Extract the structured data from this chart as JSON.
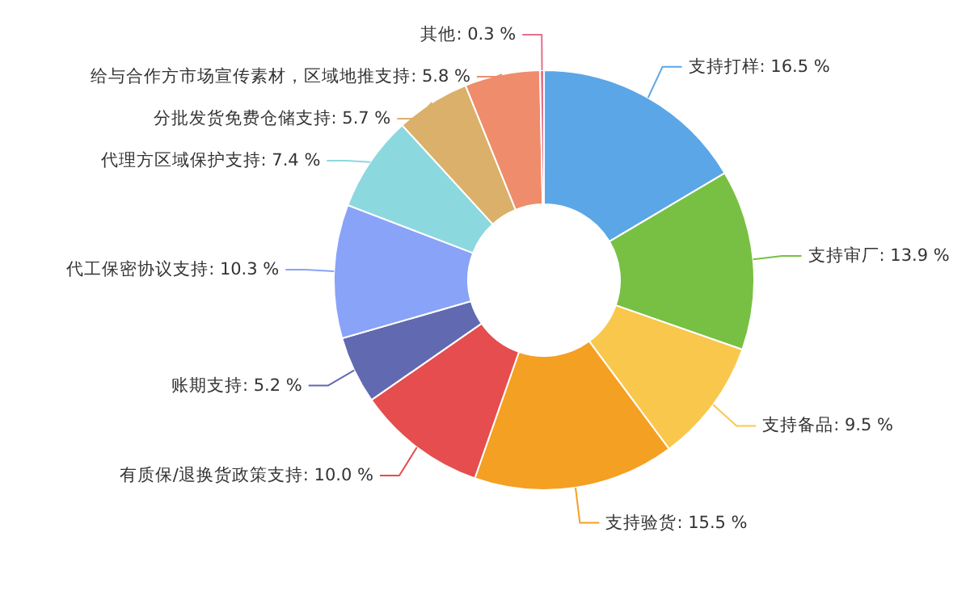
{
  "chart_data": {
    "type": "donut",
    "categories": [
      "支持打样",
      "支持审厂",
      "支持备品",
      "支持验货",
      "有质保/退换货政策支持",
      "账期支持",
      "代工保密协议支持",
      "代理方区域保护支持",
      "分批发货免费仓储支持",
      "给与合作方市场宣传素材，区域地推支持",
      "其他"
    ],
    "values": [
      16.5,
      13.9,
      9.5,
      15.5,
      10.0,
      5.2,
      10.3,
      7.4,
      5.7,
      5.8,
      0.3
    ],
    "value_labels": [
      "16.5 %",
      "13.9 %",
      "9.5 %",
      "15.5 %",
      "10.0 %",
      "5.2 %",
      "10.3 %",
      "7.4 %",
      "5.7 %",
      "5.8 %",
      "0.3 %"
    ],
    "colors": [
      "#5ba6e6",
      "#78c043",
      "#f9c74c",
      "#f4a022",
      "#e54d4f",
      "#6169b0",
      "#88a3f7",
      "#8cd8df",
      "#dab06a",
      "#ef8c6c",
      "#e2708a"
    ]
  }
}
